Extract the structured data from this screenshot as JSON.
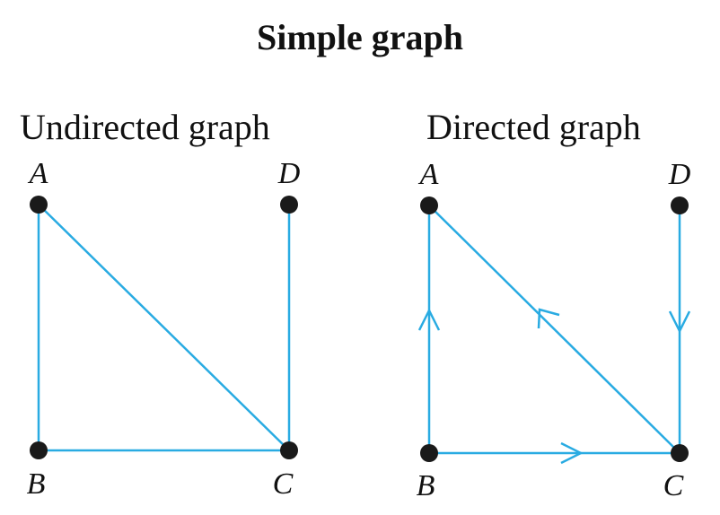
{
  "title": "Simple graph",
  "colors": {
    "edge": "#29abe2",
    "vertex": "#1a1a1a",
    "text": "#111111"
  },
  "undirected": {
    "label": "Undirected graph",
    "vertices": {
      "A": "A",
      "B": "B",
      "C": "C",
      "D": "D"
    },
    "edges": [
      {
        "from": "A",
        "to": "B"
      },
      {
        "from": "A",
        "to": "C"
      },
      {
        "from": "B",
        "to": "C"
      },
      {
        "from": "D",
        "to": "C"
      }
    ]
  },
  "directed": {
    "label": "Directed graph",
    "vertices": {
      "A": "A",
      "B": "B",
      "C": "C",
      "D": "D"
    },
    "edges": [
      {
        "from": "B",
        "to": "A"
      },
      {
        "from": "C",
        "to": "A"
      },
      {
        "from": "B",
        "to": "C"
      },
      {
        "from": "D",
        "to": "C"
      }
    ]
  }
}
